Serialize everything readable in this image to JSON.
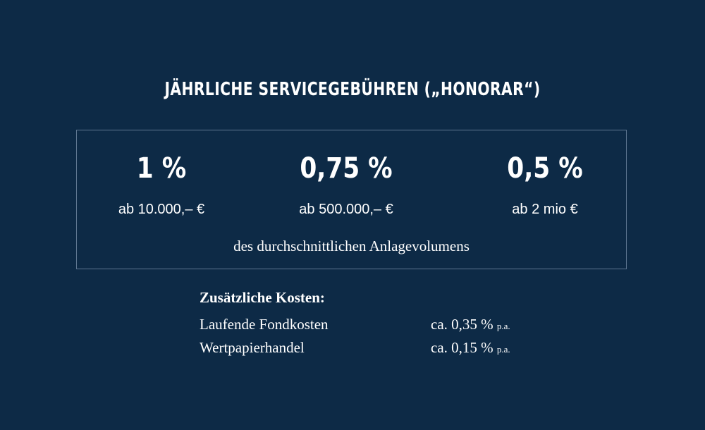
{
  "title": "JÄHRLICHE SERVICEGEBÜHREN („HONORAR“)",
  "tiers": [
    {
      "rate": "1 %",
      "minimum": "ab 10.000,– €"
    },
    {
      "rate": "0,75 %",
      "minimum": "ab 500.000,– €"
    },
    {
      "rate": "0,5 %",
      "minimum": "ab 2 mio €"
    }
  ],
  "basis": "des durchschnittlichen Anlagevolumens",
  "extra_costs": {
    "heading": "Zusätzliche Kosten:",
    "items": [
      {
        "name": "Laufende Fondkosten",
        "value": "ca. 0,35 %",
        "unit": "p.a."
      },
      {
        "name": "Wertpapierhandel",
        "value": "ca. 0,15 %",
        "unit": "p.a."
      }
    ]
  },
  "colors": {
    "background": "#0d2a46",
    "text": "#ffffff",
    "box_border": "#5f7791"
  }
}
